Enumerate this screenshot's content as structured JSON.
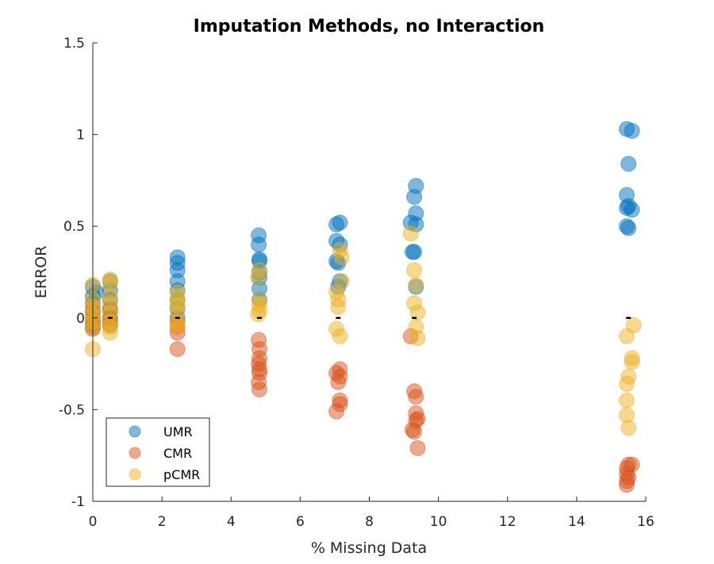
{
  "chart_data": {
    "type": "scatter",
    "title": "Imputation Methods, no Interaction",
    "xlabel": "% Missing Data",
    "ylabel": "ERROR",
    "xlim": [
      0,
      16
    ],
    "ylim": [
      -1,
      1.5
    ],
    "xticks": [
      0,
      2,
      4,
      6,
      8,
      10,
      12,
      14,
      16
    ],
    "yticks": [
      -1,
      -0.5,
      0,
      0.5,
      1,
      1.5
    ],
    "xtick_labels": [
      "0",
      "2",
      "4",
      "6",
      "8",
      "10",
      "12",
      "14",
      "16"
    ],
    "ytick_labels": [
      "-1",
      "-0.5",
      "0",
      "0.5",
      "1",
      "1.5"
    ],
    "grid": false,
    "legend_position": "bottom-left",
    "series": [
      {
        "name": "UMR",
        "color": "#0072BD",
        "points": [
          [
            0,
            0.17
          ],
          [
            0,
            0.12
          ],
          [
            0,
            0.08
          ],
          [
            0,
            0.03
          ],
          [
            0,
            -0.02
          ],
          [
            0,
            -0.05
          ],
          [
            0.1,
            0.14
          ],
          [
            0.5,
            0.2
          ],
          [
            0.5,
            0.15
          ],
          [
            0.5,
            0.1
          ],
          [
            0.5,
            0.05
          ],
          [
            0.5,
            0.0
          ],
          [
            0.5,
            -0.03
          ],
          [
            2.45,
            0.33
          ],
          [
            2.45,
            0.3
          ],
          [
            2.45,
            0.26
          ],
          [
            2.45,
            0.2
          ],
          [
            2.45,
            0.15
          ],
          [
            2.45,
            0.1
          ],
          [
            2.45,
            0.05
          ],
          [
            2.45,
            0.0
          ],
          [
            4.8,
            0.45
          ],
          [
            4.8,
            0.4
          ],
          [
            4.82,
            0.32
          ],
          [
            4.82,
            0.31
          ],
          [
            4.82,
            0.25
          ],
          [
            4.82,
            0.22
          ],
          [
            4.82,
            0.16
          ],
          [
            4.82,
            0.1
          ],
          [
            7.05,
            0.51
          ],
          [
            7.15,
            0.52
          ],
          [
            7.05,
            0.42
          ],
          [
            7.15,
            0.4
          ],
          [
            7.05,
            0.31
          ],
          [
            7.1,
            0.3
          ],
          [
            7.15,
            0.2
          ],
          [
            7.1,
            0.17
          ],
          [
            9.2,
            0.52
          ],
          [
            9.3,
            0.66
          ],
          [
            9.35,
            0.72
          ],
          [
            9.35,
            0.57
          ],
          [
            9.35,
            0.51
          ],
          [
            9.3,
            0.36
          ],
          [
            9.25,
            0.36
          ],
          [
            9.35,
            0.17
          ],
          [
            15.45,
            1.03
          ],
          [
            15.6,
            1.02
          ],
          [
            15.5,
            0.84
          ],
          [
            15.45,
            0.67
          ],
          [
            15.45,
            0.6
          ],
          [
            15.6,
            0.59
          ],
          [
            15.5,
            0.61
          ],
          [
            15.45,
            0.5
          ],
          [
            15.5,
            0.49
          ]
        ]
      },
      {
        "name": "CMR",
        "color": "#D95319",
        "points": [
          [
            0,
            0.05
          ],
          [
            0,
            0.0
          ],
          [
            0,
            -0.03
          ],
          [
            0,
            -0.06
          ],
          [
            0.5,
            0.04
          ],
          [
            0.5,
            -0.01
          ],
          [
            0.5,
            -0.04
          ],
          [
            2.45,
            -0.05
          ],
          [
            2.45,
            -0.08
          ],
          [
            2.45,
            -0.17
          ],
          [
            2.45,
            -0.02
          ],
          [
            4.8,
            -0.12
          ],
          [
            4.82,
            -0.17
          ],
          [
            4.82,
            -0.22
          ],
          [
            4.8,
            -0.25
          ],
          [
            4.82,
            -0.28
          ],
          [
            4.82,
            -0.3
          ],
          [
            4.8,
            -0.35
          ],
          [
            4.82,
            -0.39
          ],
          [
            7.05,
            -0.3
          ],
          [
            7.15,
            -0.28
          ],
          [
            7.15,
            -0.32
          ],
          [
            7.1,
            -0.35
          ],
          [
            7.15,
            -0.45
          ],
          [
            7.15,
            -0.47
          ],
          [
            7.05,
            -0.51
          ],
          [
            9.2,
            -0.1
          ],
          [
            9.3,
            -0.4
          ],
          [
            9.35,
            -0.43
          ],
          [
            9.35,
            -0.52
          ],
          [
            9.4,
            -0.55
          ],
          [
            9.35,
            -0.56
          ],
          [
            9.25,
            -0.61
          ],
          [
            9.3,
            -0.62
          ],
          [
            9.4,
            -0.71
          ],
          [
            15.5,
            -0.8
          ],
          [
            15.6,
            -0.8
          ],
          [
            15.45,
            -0.82
          ],
          [
            15.45,
            -0.85
          ],
          [
            15.5,
            -0.87
          ],
          [
            15.45,
            -0.89
          ],
          [
            15.45,
            -0.91
          ]
        ]
      },
      {
        "name": "pCMR",
        "color": "#EDB120",
        "points": [
          [
            0,
            0.18
          ],
          [
            0,
            0.1
          ],
          [
            0,
            0.06
          ],
          [
            0,
            0.02
          ],
          [
            0,
            -0.02
          ],
          [
            0,
            -0.06
          ],
          [
            0,
            -0.17
          ],
          [
            0.5,
            0.21
          ],
          [
            0.5,
            0.19
          ],
          [
            0.5,
            0.12
          ],
          [
            0.5,
            0.08
          ],
          [
            0.5,
            0.03
          ],
          [
            0.5,
            -0.02
          ],
          [
            0.5,
            -0.05
          ],
          [
            0.5,
            -0.08
          ],
          [
            2.45,
            0.14
          ],
          [
            2.45,
            0.1
          ],
          [
            2.45,
            0.07
          ],
          [
            2.45,
            0.04
          ],
          [
            2.45,
            -0.02
          ],
          [
            2.45,
            -0.05
          ],
          [
            4.78,
            0.22
          ],
          [
            4.82,
            0.26
          ],
          [
            4.82,
            0.1
          ],
          [
            4.82,
            0.07
          ],
          [
            4.82,
            0.04
          ],
          [
            4.78,
            0.02
          ],
          [
            7.15,
            0.37
          ],
          [
            7.2,
            0.33
          ],
          [
            7.2,
            0.2
          ],
          [
            7.05,
            0.14
          ],
          [
            7.1,
            0.1
          ],
          [
            7.1,
            0.06
          ],
          [
            7.05,
            -0.06
          ],
          [
            7.15,
            -0.1
          ],
          [
            9.2,
            0.46
          ],
          [
            9.3,
            0.26
          ],
          [
            9.35,
            0.18
          ],
          [
            9.3,
            0.08
          ],
          [
            9.4,
            0.03
          ],
          [
            9.35,
            -0.05
          ],
          [
            9.4,
            -0.11
          ],
          [
            15.65,
            -0.04
          ],
          [
            15.45,
            -0.1
          ],
          [
            15.6,
            -0.22
          ],
          [
            15.6,
            -0.24
          ],
          [
            15.5,
            -0.32
          ],
          [
            15.45,
            -0.36
          ],
          [
            15.45,
            -0.45
          ],
          [
            15.45,
            -0.53
          ],
          [
            15.5,
            -0.6
          ]
        ]
      }
    ],
    "mean_markers": [
      [
        0.5,
        0
      ],
      [
        2.45,
        0
      ],
      [
        4.82,
        0
      ],
      [
        7.1,
        0
      ],
      [
        9.3,
        0
      ],
      [
        15.5,
        0
      ]
    ]
  }
}
